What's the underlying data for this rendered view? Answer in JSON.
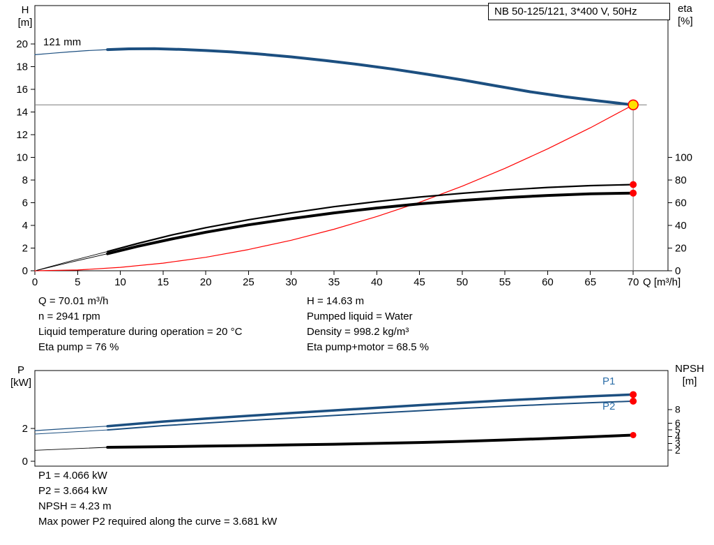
{
  "title_box": {
    "text": "NB 50-125/121, 3*400 V, 50Hz"
  },
  "impeller_label": "121 mm",
  "p1_label": "P1",
  "p2_label": "P2",
  "axis_titles": {
    "h": [
      "H",
      "[m]"
    ],
    "eta": [
      "eta",
      "[%]"
    ],
    "q": "Q [m³/h]",
    "p": [
      "P",
      "[kW]"
    ],
    "npsh": [
      "NPSH",
      "[m]"
    ]
  },
  "colors": {
    "curve_blue": "#1c4f80",
    "curve_red": "#ff0000",
    "curve_black": "#000000",
    "marker_red": "#ff0000",
    "marker_yellow": "#ffe000",
    "crosshair_gray": "#7a7a7a",
    "label_blue": "#2e6fa8"
  },
  "info_top_left": [
    "Q = 70.01 m³/h",
    "n = 2941 rpm",
    "Liquid temperature during operation = 20 °C",
    "Eta pump = 76 %"
  ],
  "info_top_right": [
    "H = 14.63 m",
    "Pumped liquid = Water",
    "Density = 998.2 kg/m³",
    "Eta pump+motor = 68.5 %"
  ],
  "info_bottom": [
    "P1 = 4.066 kW",
    "P2 = 3.664 kW",
    "NPSH = 4.23 m",
    "Max power P2 required along the curve = 3.681 kW"
  ],
  "chart_data": [
    {
      "type": "line",
      "title": "NB 50-125/121, 3*400 V, 50Hz",
      "x_axis": {
        "label": "Q [m³/h]",
        "min": 0,
        "max": 74,
        "ticks": [
          0,
          5,
          10,
          15,
          20,
          25,
          30,
          35,
          40,
          45,
          50,
          55,
          60,
          65,
          70
        ]
      },
      "y_left": {
        "label": "H [m]",
        "min": 0,
        "max": 23.4,
        "ticks": [
          0,
          2,
          4,
          6,
          8,
          10,
          12,
          14,
          16,
          18,
          20
        ]
      },
      "y_right": {
        "label": "eta [%]",
        "min": 0,
        "max": 100,
        "ticks": [
          0,
          20,
          40,
          60,
          80,
          100
        ]
      },
      "grid": false,
      "legend": "none",
      "duty_point": {
        "q_m3h": 70.01,
        "h_m": 14.63,
        "eta_pump_pct": 76,
        "eta_pump_motor_pct": 68.5
      },
      "crosshair": {
        "q": 70.01,
        "h": 14.63
      },
      "series": [
        {
          "id": "qh-lead",
          "name": "QH curve thin lead",
          "axis": "left",
          "color": "#1c4f80",
          "width": 1.2,
          "points": [
            [
              0,
              19.05
            ],
            [
              2,
              19.18
            ],
            [
              4,
              19.3
            ],
            [
              6,
              19.41
            ],
            [
              8.5,
              19.5
            ]
          ]
        },
        {
          "id": "qh",
          "name": "QH curve 121 mm",
          "axis": "left",
          "color": "#1c4f80",
          "width": 4,
          "points": [
            [
              8.5,
              19.5
            ],
            [
              11,
              19.57
            ],
            [
              14,
              19.58
            ],
            [
              17,
              19.52
            ],
            [
              20,
              19.42
            ],
            [
              23,
              19.3
            ],
            [
              26,
              19.13
            ],
            [
              30,
              18.86
            ],
            [
              34,
              18.54
            ],
            [
              38,
              18.18
            ],
            [
              42,
              17.77
            ],
            [
              46,
              17.32
            ],
            [
              50,
              16.83
            ],
            [
              54,
              16.3
            ],
            [
              58,
              15.78
            ],
            [
              62,
              15.35
            ],
            [
              66,
              14.98
            ],
            [
              70.01,
              14.63
            ]
          ]
        },
        {
          "id": "system",
          "name": "System curve",
          "axis": "left",
          "color": "#ff0000",
          "width": 1.2,
          "points": [
            [
              0,
              0
            ],
            [
              5,
              0.07
            ],
            [
              10,
              0.3
            ],
            [
              15,
              0.67
            ],
            [
              20,
              1.19
            ],
            [
              25,
              1.87
            ],
            [
              30,
              2.69
            ],
            [
              35,
              3.66
            ],
            [
              40,
              4.78
            ],
            [
              45,
              6.04
            ],
            [
              50,
              7.46
            ],
            [
              55,
              9.03
            ],
            [
              60,
              10.75
            ],
            [
              65,
              12.61
            ],
            [
              70.01,
              14.63
            ]
          ]
        },
        {
          "id": "eta-pump-lead",
          "name": "Eta pump thin lead",
          "axis": "right",
          "color": "#000000",
          "width": 0.9,
          "points": [
            [
              0.2,
              0.4
            ],
            [
              4,
              8.2
            ],
            [
              8.5,
              17
            ]
          ]
        },
        {
          "id": "eta-pump",
          "name": "Eta pump",
          "axis": "right",
          "color": "#000000",
          "width": 2.2,
          "points": [
            [
              8.5,
              17
            ],
            [
              12,
              24
            ],
            [
              16,
              31.5
            ],
            [
              20,
              38
            ],
            [
              25,
              45
            ],
            [
              30,
              51
            ],
            [
              35,
              56.5
            ],
            [
              40,
              61
            ],
            [
              45,
              65
            ],
            [
              50,
              68.3
            ],
            [
              55,
              71.2
            ],
            [
              60,
              73.5
            ],
            [
              65,
              75.1
            ],
            [
              70.01,
              76
            ]
          ]
        },
        {
          "id": "eta-total-lead",
          "name": "Eta pump+motor thin lead",
          "axis": "right",
          "color": "#000000",
          "width": 0.9,
          "points": [
            [
              0.2,
              0.3
            ],
            [
              4,
              7.2
            ],
            [
              8.5,
              15
            ]
          ]
        },
        {
          "id": "eta-total",
          "name": "Eta pump+motor",
          "axis": "right",
          "color": "#000000",
          "width": 4,
          "points": [
            [
              8.5,
              15
            ],
            [
              12,
              21.5
            ],
            [
              16,
              28
            ],
            [
              20,
              34
            ],
            [
              25,
              40.5
            ],
            [
              30,
              46
            ],
            [
              35,
              51
            ],
            [
              40,
              55.3
            ],
            [
              45,
              59
            ],
            [
              50,
              62
            ],
            [
              55,
              64.5
            ],
            [
              60,
              66.4
            ],
            [
              65,
              67.8
            ],
            [
              70.01,
              68.5
            ]
          ]
        }
      ],
      "markers": [
        {
          "id": "duty-point-marker",
          "axis": "left",
          "q": 70.01,
          "v": 14.63,
          "r": 7,
          "fill": "#ffe000",
          "stroke": "#ff0000",
          "sw": 1.6
        },
        {
          "id": "eta-pump-point",
          "axis": "right",
          "q": 70.01,
          "v": 76,
          "r": 5,
          "fill": "#ff0000"
        },
        {
          "id": "eta-pump-motor-point",
          "axis": "right",
          "q": 70.01,
          "v": 68.5,
          "r": 5,
          "fill": "#ff0000"
        }
      ]
    },
    {
      "type": "line",
      "x_axis": {
        "label": "",
        "min": 0,
        "max": 74,
        "ticks": []
      },
      "y_left": {
        "label": "P [kW]",
        "min": 0,
        "max": 5.5,
        "ticks": [
          0,
          2
        ]
      },
      "y_right": {
        "label": "NPSH [m]",
        "min": 0,
        "max": 8,
        "ticks": [
          8,
          6,
          5,
          4,
          3,
          2
        ]
      },
      "grid": false,
      "legend": "P1 / P2 labels at curve ends",
      "duty_point": {
        "q_m3h": 70.01,
        "p1_kw": 4.066,
        "p2_kw": 3.664,
        "npsh_m": 4.23
      },
      "series": [
        {
          "id": "p1-lead",
          "name": "P1 thin lead",
          "axis": "left",
          "color": "#1c4f80",
          "width": 1.2,
          "points": [
            [
              0,
              1.87
            ],
            [
              4,
              2.0
            ],
            [
              8.5,
              2.14
            ]
          ]
        },
        {
          "id": "p1",
          "name": "P1 power",
          "axis": "left",
          "color": "#1c4f80",
          "width": 3.5,
          "points": [
            [
              8.5,
              2.14
            ],
            [
              15,
              2.42
            ],
            [
              20,
              2.6
            ],
            [
              25,
              2.77
            ],
            [
              30,
              2.94
            ],
            [
              35,
              3.1
            ],
            [
              40,
              3.26
            ],
            [
              45,
              3.42
            ],
            [
              50,
              3.57
            ],
            [
              55,
              3.71
            ],
            [
              60,
              3.84
            ],
            [
              65,
              3.96
            ],
            [
              70.01,
              4.066
            ]
          ]
        },
        {
          "id": "p2-lead",
          "name": "P2 thin lead",
          "axis": "left",
          "color": "#1c4f80",
          "width": 1,
          "points": [
            [
              0,
              1.66
            ],
            [
              4,
              1.78
            ],
            [
              8.5,
              1.91
            ]
          ]
        },
        {
          "id": "p2",
          "name": "P2 power",
          "axis": "left",
          "color": "#1c4f80",
          "width": 2,
          "points": [
            [
              8.5,
              1.91
            ],
            [
              15,
              2.17
            ],
            [
              20,
              2.33
            ],
            [
              25,
              2.49
            ],
            [
              30,
              2.64
            ],
            [
              35,
              2.79
            ],
            [
              40,
              2.94
            ],
            [
              45,
              3.08
            ],
            [
              50,
              3.22
            ],
            [
              55,
              3.35
            ],
            [
              60,
              3.47
            ],
            [
              65,
              3.57
            ],
            [
              70.01,
              3.664
            ]
          ]
        },
        {
          "id": "npsh-lead",
          "name": "NPSH thin lead",
          "axis": "right",
          "color": "#000000",
          "width": 0.9,
          "points": [
            [
              0,
              1.98
            ],
            [
              8.5,
              2.42
            ]
          ]
        },
        {
          "id": "npsh",
          "name": "NPSH",
          "axis": "right",
          "color": "#000000",
          "width": 4,
          "points": [
            [
              8.5,
              2.42
            ],
            [
              15,
              2.52
            ],
            [
              20,
              2.6
            ],
            [
              25,
              2.68
            ],
            [
              30,
              2.78
            ],
            [
              35,
              2.88
            ],
            [
              40,
              3.0
            ],
            [
              45,
              3.13
            ],
            [
              50,
              3.3
            ],
            [
              55,
              3.5
            ],
            [
              60,
              3.72
            ],
            [
              65,
              3.97
            ],
            [
              70.01,
              4.23
            ]
          ]
        }
      ],
      "markers": [
        {
          "id": "p1-point",
          "axis": "left",
          "q": 70.01,
          "v": 4.066,
          "r": 5,
          "fill": "#ff0000"
        },
        {
          "id": "p2-point",
          "axis": "left",
          "q": 70.01,
          "v": 3.664,
          "r": 5,
          "fill": "#ff0000"
        },
        {
          "id": "npsh-point",
          "axis": "right",
          "q": 70.01,
          "v": 4.23,
          "r": 4.5,
          "fill": "#ff0000"
        }
      ]
    }
  ]
}
